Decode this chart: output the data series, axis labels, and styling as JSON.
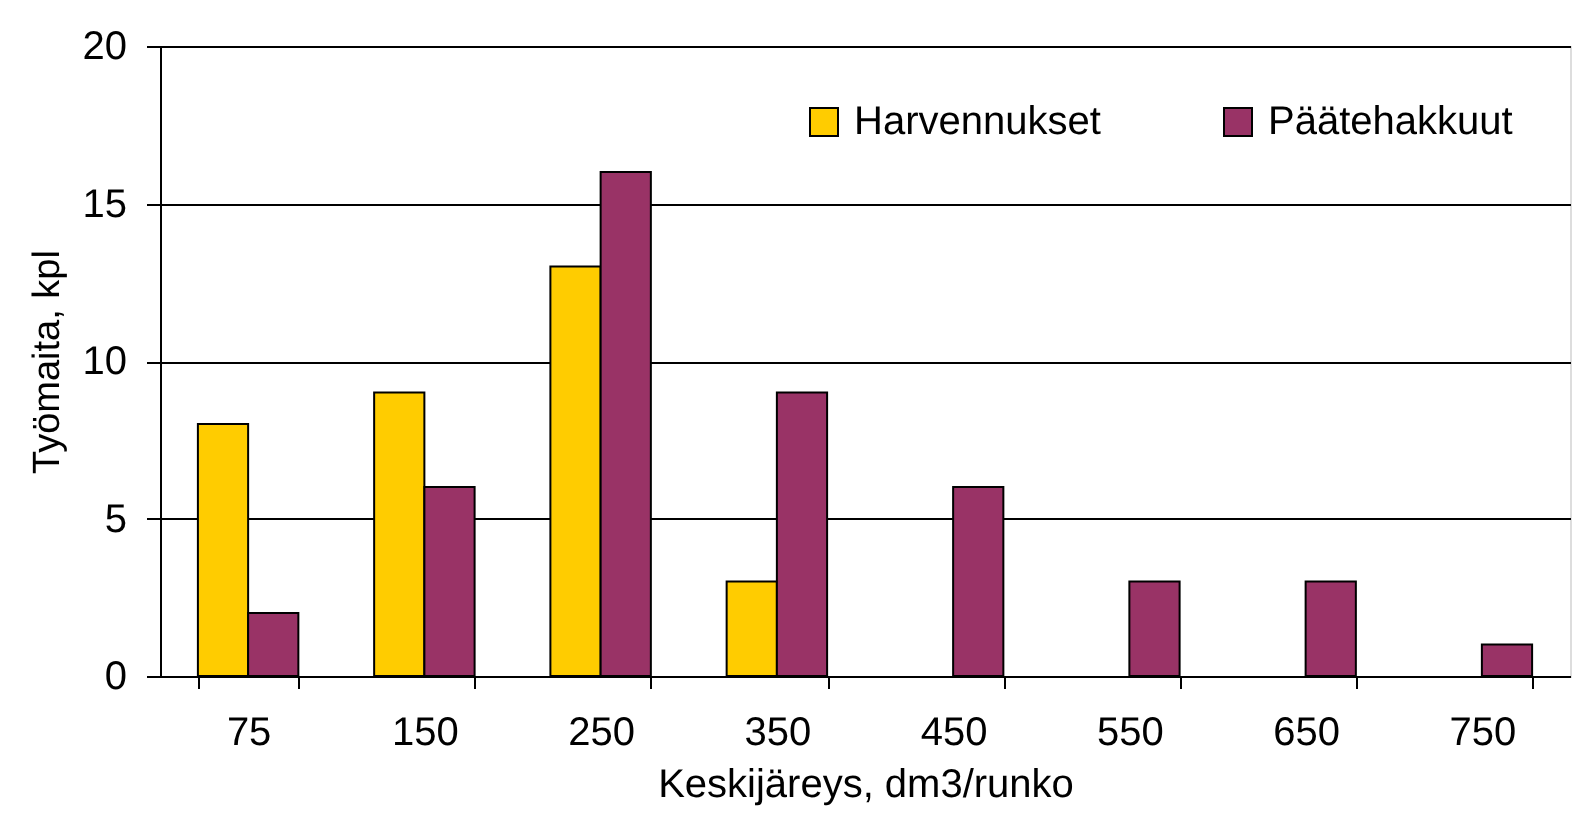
{
  "chart_data": {
    "type": "bar",
    "xlabel": "Keskijäreys, dm3/runko",
    "ylabel": "Työmaita, kpl",
    "categories": [
      "75",
      "150",
      "250",
      "350",
      "450",
      "550",
      "650",
      "750"
    ],
    "series": [
      {
        "name": "Harvennukset",
        "color": "#ffcc00",
        "values": [
          8,
          9,
          13,
          3,
          null,
          null,
          null,
          null
        ]
      },
      {
        "name": "Päätehakkuut",
        "color": "#993366",
        "values": [
          2,
          6,
          16,
          9,
          6,
          3,
          3,
          1
        ]
      }
    ],
    "ylim": [
      0,
      20
    ],
    "yticks": [
      0,
      5,
      10,
      15,
      20
    ],
    "grid": "y",
    "legend": "top right"
  }
}
